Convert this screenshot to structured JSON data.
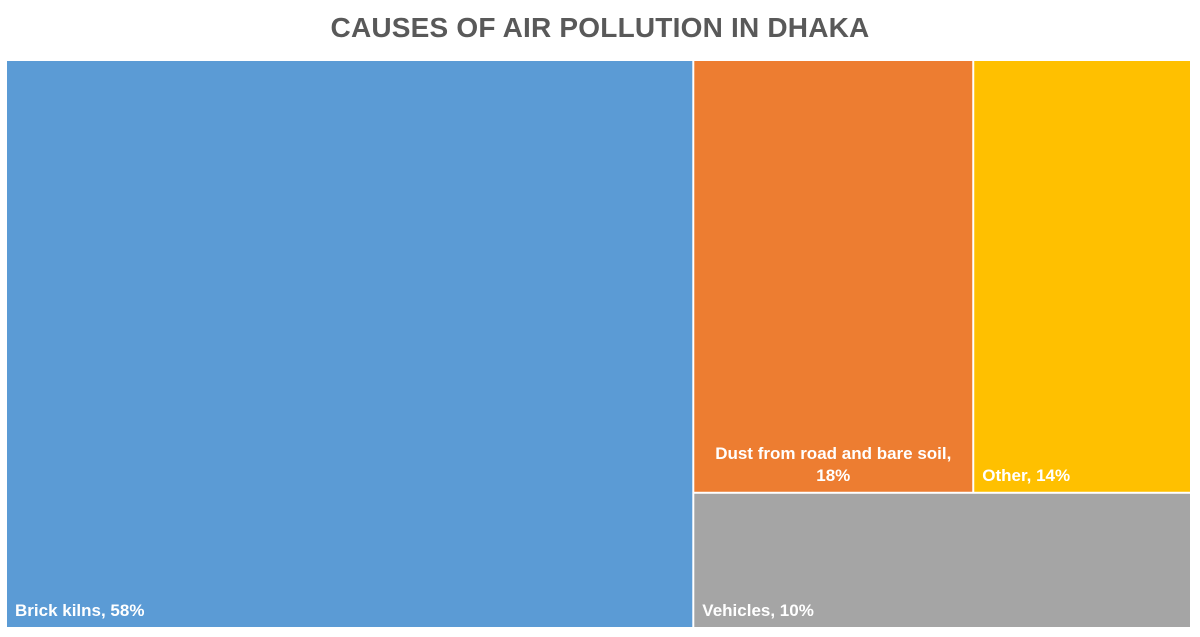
{
  "chart_data": {
    "type": "treemap",
    "title": "CAUSES OF AIR POLLUTION IN DHAKA",
    "categories": [
      "Brick kilns",
      "Dust from road and bare soil",
      "Other",
      "Vehicles"
    ],
    "values": [
      58,
      18,
      14,
      10
    ],
    "unit": "%",
    "labels": [
      {
        "lines": [
          "Brick kilns, 58%"
        ],
        "align": "start",
        "anchor": "bottom"
      },
      {
        "lines": [
          "Dust from road and bare soil,",
          "18%"
        ],
        "align": "middle",
        "anchor": "bottom"
      },
      {
        "lines": [
          "Other, 14%"
        ],
        "align": "start",
        "anchor": "bottom"
      },
      {
        "lines": [
          "Vehicles, 10%"
        ],
        "align": "start",
        "anchor": "bottom"
      }
    ],
    "colors": [
      "#5B9BD5",
      "#ED7D31",
      "#FFC000",
      "#A5A5A5"
    ],
    "legend": "none"
  }
}
